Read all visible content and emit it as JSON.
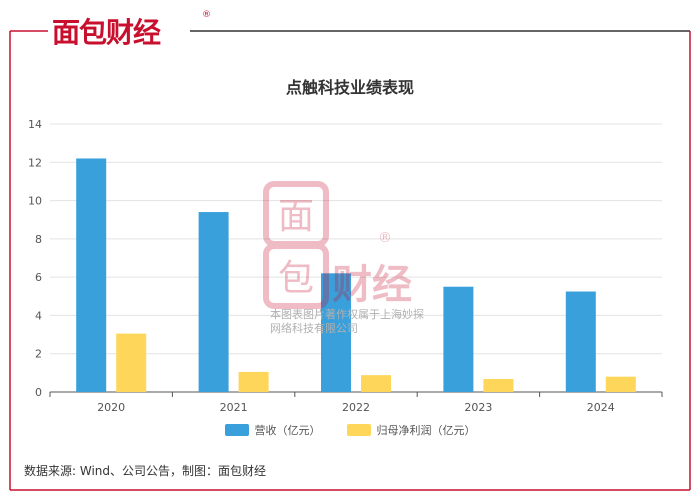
{
  "brand": {
    "name": "面包财经",
    "reg": "®"
  },
  "source_note": "数据来源: Wind、公司公告，制图：面包财经",
  "watermark": {
    "line1": "本图表图片著作权属于上海妙探",
    "line2": "网络科技有限公司",
    "logo_top": "面",
    "logo_bottom": "包",
    "logo_right": "财经",
    "reg": "®"
  },
  "colors": {
    "brand_red": "#c8102e",
    "series_revenue": "#3aa0dc",
    "series_profit": "#fdd65a"
  },
  "chart_data": {
    "type": "bar",
    "title": "点触科技业绩表现",
    "categories": [
      "2020",
      "2021",
      "2022",
      "2023",
      "2024"
    ],
    "series": [
      {
        "name": "营收（亿元）",
        "values": [
          12.2,
          9.4,
          6.2,
          5.5,
          5.25
        ]
      },
      {
        "name": "归母净利润（亿元）",
        "values": [
          3.05,
          1.05,
          0.88,
          0.68,
          0.8
        ]
      }
    ],
    "ylim": [
      0,
      14
    ],
    "yticks": [
      0,
      2,
      4,
      6,
      8,
      10,
      12,
      14
    ],
    "grid": true,
    "legend": "bottom"
  }
}
